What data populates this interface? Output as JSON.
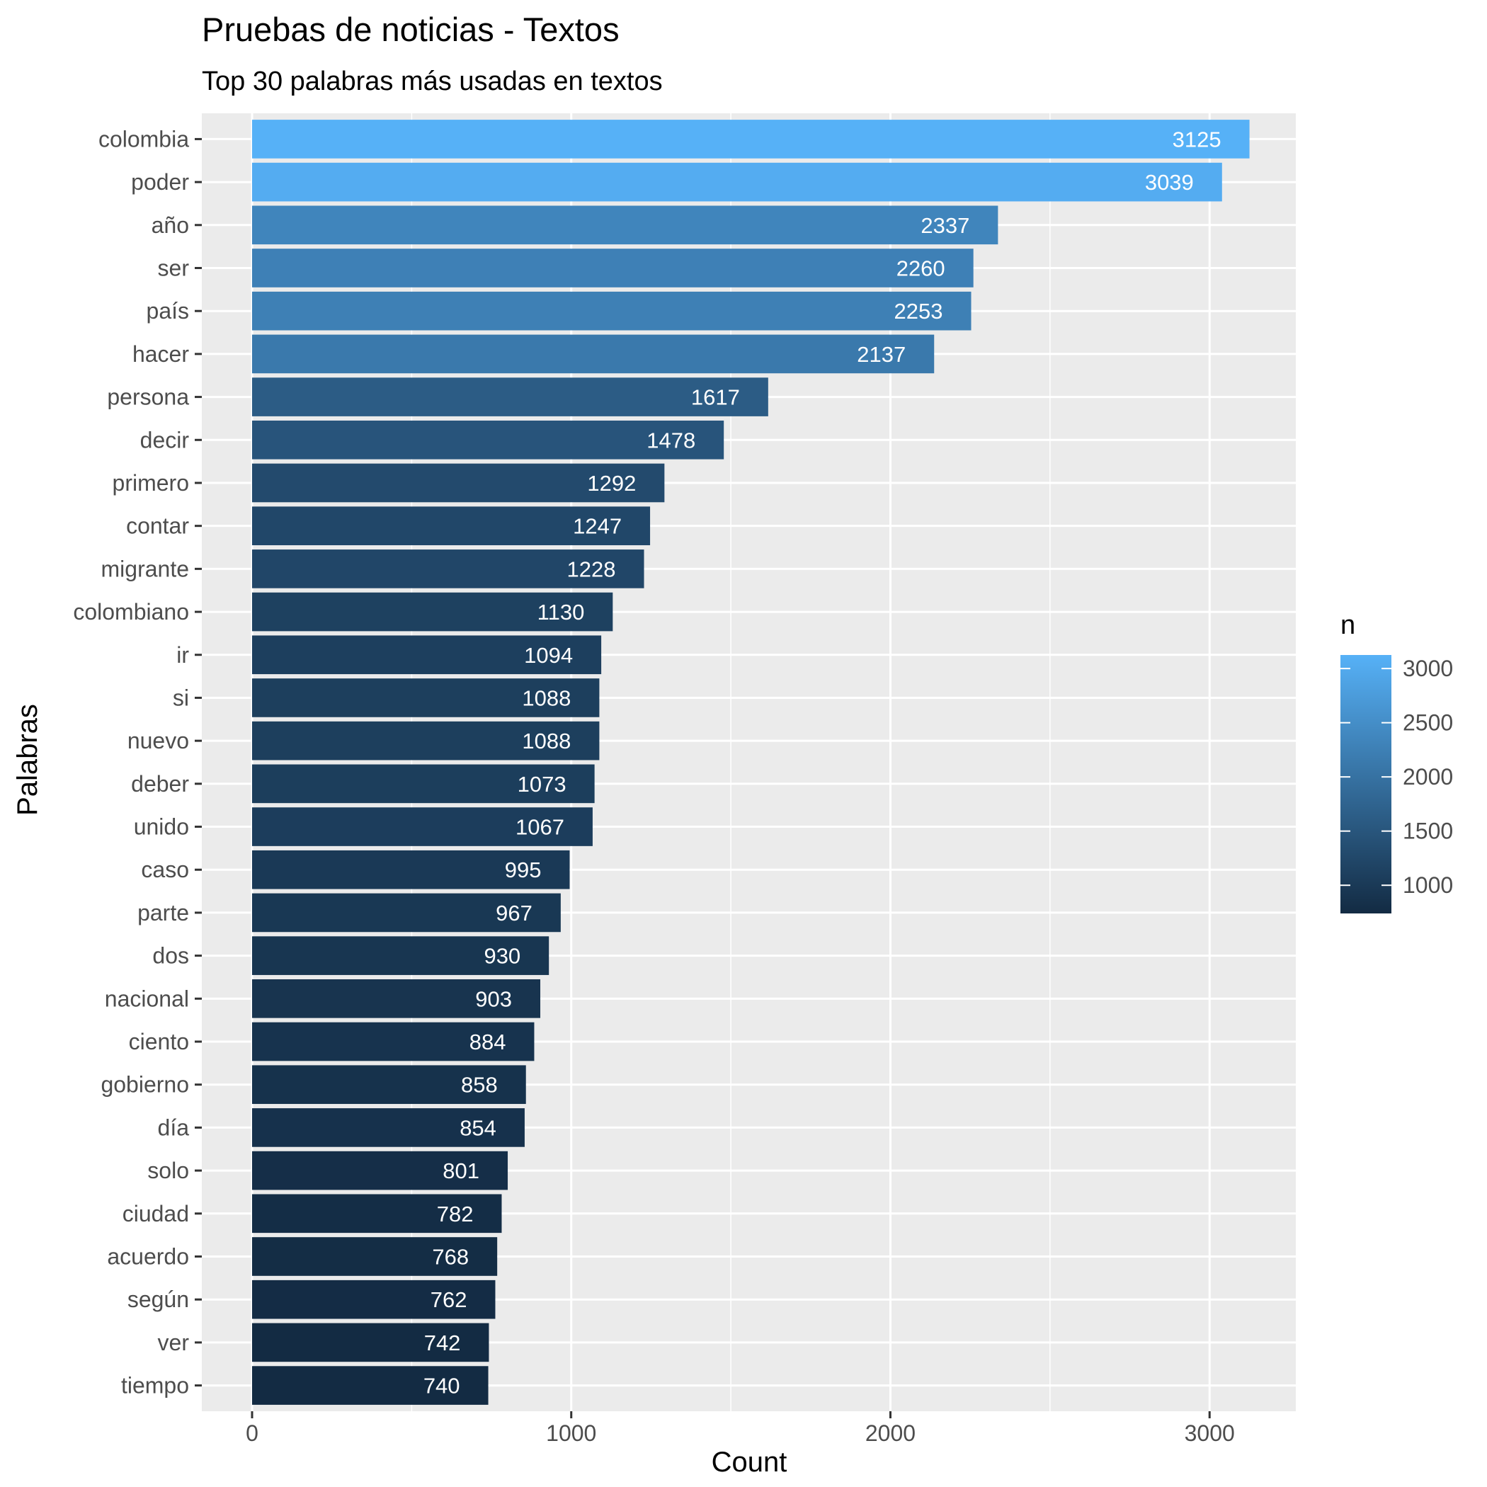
{
  "chart_data": {
    "type": "bar",
    "orientation": "horizontal",
    "title": "Pruebas de noticias - Textos",
    "subtitle": "Top 30 palabras más usadas en textos",
    "xlabel": "Count",
    "ylabel": "Palabras",
    "xlim": [
      -150,
      3270
    ],
    "xticks": [
      0,
      1000,
      2000,
      3000
    ],
    "grid": true,
    "categories": [
      "colombia",
      "poder",
      "año",
      "ser",
      "país",
      "hacer",
      "persona",
      "decir",
      "primero",
      "contar",
      "migrante",
      "colombiano",
      "ir",
      "si",
      "nuevo",
      "deber",
      "unido",
      "caso",
      "parte",
      "dos",
      "nacional",
      "ciento",
      "gobierno",
      "día",
      "solo",
      "ciudad",
      "acuerdo",
      "según",
      "ver",
      "tiempo"
    ],
    "values": [
      3125,
      3039,
      2337,
      2260,
      2253,
      2137,
      1617,
      1478,
      1292,
      1247,
      1228,
      1130,
      1094,
      1088,
      1088,
      1073,
      1067,
      995,
      967,
      930,
      903,
      884,
      858,
      854,
      801,
      782,
      768,
      762,
      742,
      740
    ],
    "legend": {
      "title": "n",
      "position": "right",
      "ticks": [
        1000,
        1500,
        2000,
        2500,
        3000
      ],
      "range": [
        740,
        3125
      ],
      "color_low": "#132B43",
      "color_high": "#56B1F7"
    }
  }
}
